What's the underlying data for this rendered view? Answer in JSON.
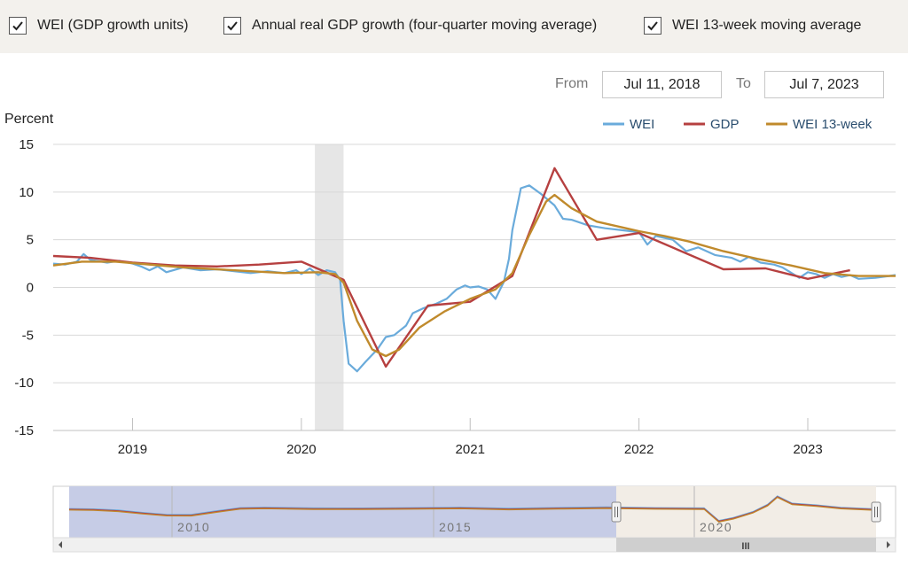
{
  "toggles": [
    {
      "label": "WEI (GDP growth units)",
      "checked": true
    },
    {
      "label": "Annual real GDP growth (four-quarter moving average)",
      "checked": true
    },
    {
      "label": "WEI 13-week moving average",
      "checked": true
    }
  ],
  "range": {
    "from_label": "From",
    "from_value": "Jul 11, 2018",
    "to_label": "To",
    "to_value": "Jul 7, 2023"
  },
  "navigator": {
    "labels": [
      "2010",
      "2015",
      "2020"
    ],
    "scrollbar_grip": "III"
  },
  "chart_data": {
    "type": "line",
    "ylabel": "Percent",
    "ylim": [
      -15,
      15
    ],
    "yticks": [
      15,
      10,
      5,
      0,
      -5,
      -10,
      -15
    ],
    "xlim": [
      2018.53,
      2023.52
    ],
    "xticks": [
      2019,
      2020,
      2021,
      2022,
      2023
    ],
    "grid": true,
    "legend_position": "top-right",
    "recession_band": [
      2020.08,
      2020.25
    ],
    "series": [
      {
        "name": "WEI",
        "color": "#6aabdb",
        "points": [
          [
            2018.53,
            2.5
          ],
          [
            2018.6,
            2.4
          ],
          [
            2018.67,
            2.7
          ],
          [
            2018.71,
            3.5
          ],
          [
            2018.75,
            2.9
          ],
          [
            2018.85,
            2.6
          ],
          [
            2018.92,
            2.8
          ],
          [
            2019.0,
            2.5
          ],
          [
            2019.05,
            2.2
          ],
          [
            2019.1,
            1.8
          ],
          [
            2019.15,
            2.2
          ],
          [
            2019.2,
            1.6
          ],
          [
            2019.3,
            2.1
          ],
          [
            2019.4,
            1.8
          ],
          [
            2019.5,
            1.9
          ],
          [
            2019.6,
            1.7
          ],
          [
            2019.7,
            1.5
          ],
          [
            2019.8,
            1.7
          ],
          [
            2019.9,
            1.5
          ],
          [
            2019.97,
            1.8
          ],
          [
            2020.0,
            1.4
          ],
          [
            2020.05,
            2.0
          ],
          [
            2020.1,
            1.3
          ],
          [
            2020.15,
            1.8
          ],
          [
            2020.2,
            1.6
          ],
          [
            2020.23,
            0.8
          ],
          [
            2020.25,
            -3.5
          ],
          [
            2020.28,
            -8.0
          ],
          [
            2020.33,
            -8.8
          ],
          [
            2020.38,
            -7.8
          ],
          [
            2020.45,
            -6.5
          ],
          [
            2020.5,
            -5.2
          ],
          [
            2020.55,
            -5.0
          ],
          [
            2020.62,
            -4.0
          ],
          [
            2020.66,
            -2.7
          ],
          [
            2020.72,
            -2.2
          ],
          [
            2020.8,
            -1.7
          ],
          [
            2020.86,
            -1.2
          ],
          [
            2020.92,
            -0.2
          ],
          [
            2020.97,
            0.2
          ],
          [
            2021.0,
            0.0
          ],
          [
            2021.05,
            0.1
          ],
          [
            2021.1,
            -0.2
          ],
          [
            2021.15,
            -1.2
          ],
          [
            2021.2,
            0.6
          ],
          [
            2021.23,
            3.0
          ],
          [
            2021.25,
            6.0
          ],
          [
            2021.3,
            10.4
          ],
          [
            2021.35,
            10.7
          ],
          [
            2021.42,
            9.8
          ],
          [
            2021.5,
            8.6
          ],
          [
            2021.55,
            7.2
          ],
          [
            2021.6,
            7.1
          ],
          [
            2021.7,
            6.5
          ],
          [
            2021.8,
            6.2
          ],
          [
            2021.9,
            6.0
          ],
          [
            2022.0,
            5.8
          ],
          [
            2022.05,
            4.5
          ],
          [
            2022.1,
            5.4
          ],
          [
            2022.15,
            5.2
          ],
          [
            2022.2,
            5.0
          ],
          [
            2022.28,
            3.8
          ],
          [
            2022.35,
            4.2
          ],
          [
            2022.45,
            3.4
          ],
          [
            2022.55,
            3.1
          ],
          [
            2022.6,
            2.7
          ],
          [
            2022.65,
            3.2
          ],
          [
            2022.72,
            2.6
          ],
          [
            2022.8,
            2.4
          ],
          [
            2022.85,
            2.1
          ],
          [
            2022.95,
            1.0
          ],
          [
            2023.0,
            1.6
          ],
          [
            2023.05,
            1.4
          ],
          [
            2023.1,
            1.0
          ],
          [
            2023.15,
            1.4
          ],
          [
            2023.2,
            1.1
          ],
          [
            2023.25,
            1.3
          ],
          [
            2023.3,
            0.9
          ],
          [
            2023.4,
            1.0
          ],
          [
            2023.48,
            1.2
          ],
          [
            2023.52,
            1.3
          ]
        ]
      },
      {
        "name": "GDP",
        "color": "#b64040",
        "points": [
          [
            2018.53,
            3.3
          ],
          [
            2018.75,
            3.1
          ],
          [
            2019.0,
            2.6
          ],
          [
            2019.25,
            2.3
          ],
          [
            2019.5,
            2.2
          ],
          [
            2019.75,
            2.4
          ],
          [
            2020.0,
            2.7
          ],
          [
            2020.25,
            0.8
          ],
          [
            2020.5,
            -8.3
          ],
          [
            2020.75,
            -1.9
          ],
          [
            2021.0,
            -1.5
          ],
          [
            2021.25,
            1.2
          ],
          [
            2021.5,
            12.5
          ],
          [
            2021.75,
            5.0
          ],
          [
            2022.0,
            5.7
          ],
          [
            2022.5,
            1.9
          ],
          [
            2022.75,
            2.0
          ],
          [
            2023.0,
            0.9
          ],
          [
            2023.25,
            1.8
          ]
        ]
      },
      {
        "name": "WEI 13-week",
        "color": "#c08a2c",
        "points": [
          [
            2018.53,
            2.3
          ],
          [
            2018.7,
            2.7
          ],
          [
            2018.9,
            2.7
          ],
          [
            2019.1,
            2.4
          ],
          [
            2019.3,
            2.1
          ],
          [
            2019.5,
            1.9
          ],
          [
            2019.7,
            1.7
          ],
          [
            2019.9,
            1.5
          ],
          [
            2020.1,
            1.6
          ],
          [
            2020.2,
            1.4
          ],
          [
            2020.25,
            0.5
          ],
          [
            2020.33,
            -3.5
          ],
          [
            2020.42,
            -6.5
          ],
          [
            2020.5,
            -7.2
          ],
          [
            2020.58,
            -6.5
          ],
          [
            2020.7,
            -4.2
          ],
          [
            2020.85,
            -2.5
          ],
          [
            2021.0,
            -1.2
          ],
          [
            2021.15,
            -0.2
          ],
          [
            2021.25,
            1.5
          ],
          [
            2021.35,
            5.5
          ],
          [
            2021.45,
            9.0
          ],
          [
            2021.5,
            9.7
          ],
          [
            2021.6,
            8.3
          ],
          [
            2021.75,
            6.9
          ],
          [
            2021.9,
            6.3
          ],
          [
            2022.0,
            5.9
          ],
          [
            2022.15,
            5.4
          ],
          [
            2022.3,
            4.8
          ],
          [
            2022.5,
            3.8
          ],
          [
            2022.7,
            3.0
          ],
          [
            2022.9,
            2.3
          ],
          [
            2023.1,
            1.5
          ],
          [
            2023.3,
            1.2
          ],
          [
            2023.52,
            1.2
          ]
        ]
      }
    ]
  }
}
